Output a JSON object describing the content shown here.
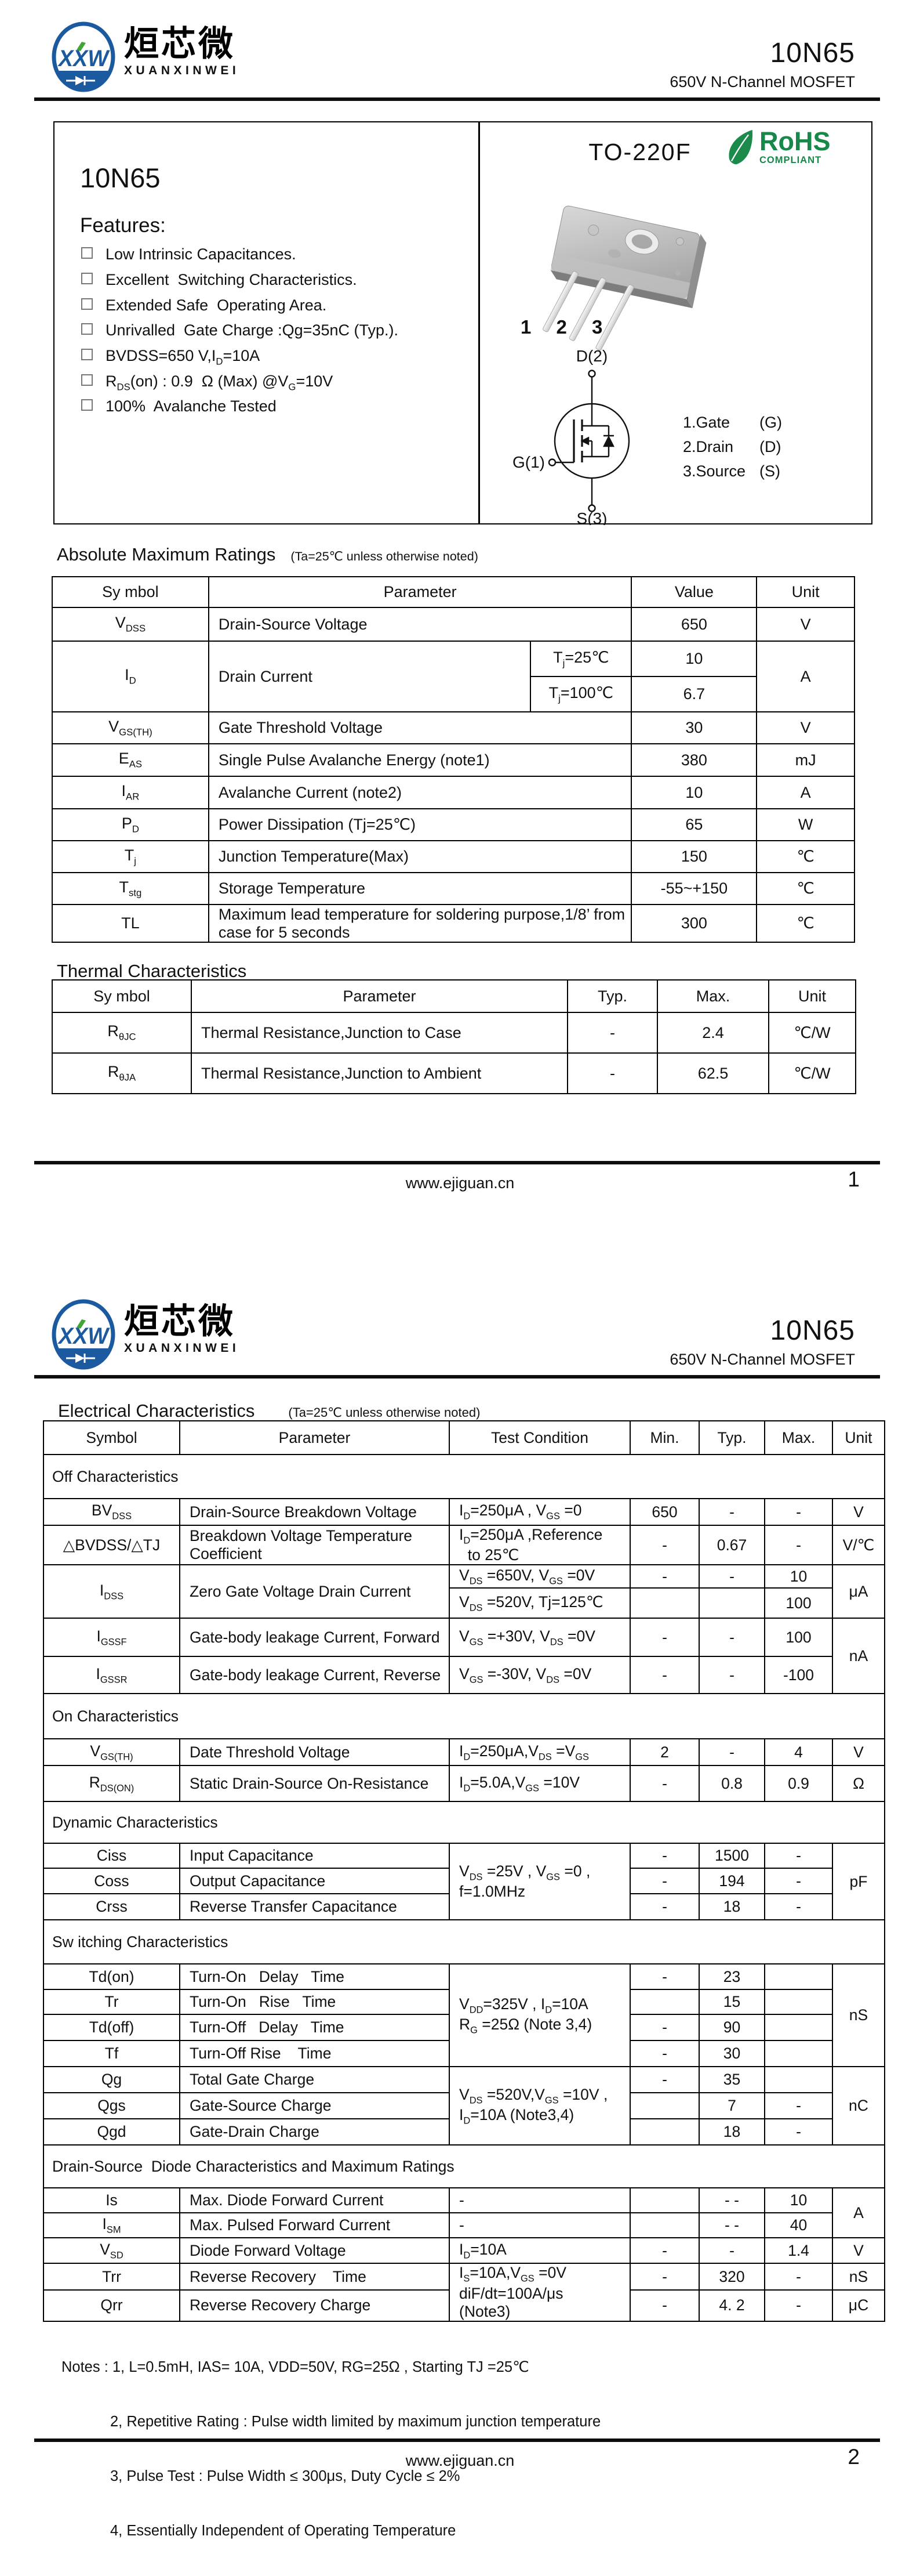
{
  "header": {
    "part": "10N65",
    "subtitle": "650V N-Channel MOSFET"
  },
  "brand": {
    "logo": "XXW",
    "cn": "烜芯微",
    "en": "XUANXINWEI"
  },
  "footer": {
    "url": "www.ejiguan.cn",
    "page1": "1",
    "page2": "2"
  },
  "page1": {
    "part_title": "10N65",
    "package_name": "TO-220F",
    "rohs": {
      "title": "RoHS",
      "subtitle": "COMPLIANT"
    },
    "pin_numbers": "1 2 3",
    "features_title": "Features:",
    "features": [
      "Low Intrinsic Capacitances.",
      "Excellent  Switching Characteristics.",
      "Extended Safe  Operating Area.",
      "Unrivalled  Gate Charge :Qg=35nC (Typ.).",
      "BVDSS=650 V,I<sub>D</sub>=10A",
      "R<sub>DS</sub>(on) : 0.9  Ω (Max) @V<sub>G</sub>=10V",
      "100%  Avalanche Tested"
    ],
    "mosfet_labels": {
      "drain": "D(2)",
      "gate": "G(1)",
      "source": "S(3)"
    },
    "pin_legend": [
      {
        "name": "1.Gate",
        "sym": "(G)"
      },
      {
        "name": "2.Drain",
        "sym": "(D)"
      },
      {
        "name": "3.Source",
        "sym": "(S)"
      }
    ],
    "abs_max": {
      "title": "Absolute Maximum Ratings",
      "note": "(Ta=25℃ unless otherwise noted)",
      "headers": {
        "symbol": "Sy mbol",
        "parameter": "Parameter",
        "value": "Value",
        "unit": "Unit"
      },
      "rows": [
        {
          "symbol": "V<sub>DSS</sub>",
          "parameter": "Drain-Source Voltage",
          "value": "650",
          "unit": "V"
        },
        {
          "symbol": "I<sub>D</sub>",
          "parameter": "Drain Current",
          "cond1": "T<sub>j</sub>=25℃",
          "value1": "10",
          "cond2": "T<sub>j</sub>=100℃",
          "value2": "6.7",
          "unit": "A"
        },
        {
          "symbol": "V<sub>GS(TH)</sub>",
          "parameter": "Gate Threshold Voltage",
          "value": "30",
          "unit": "V"
        },
        {
          "symbol": "E<sub>AS</sub>",
          "parameter": "Single Pulse Avalanche Energy (note1)",
          "value": "380",
          "unit": "mJ"
        },
        {
          "symbol": "I<sub>AR</sub>",
          "parameter": "Avalanche Current (note2)",
          "value": "10",
          "unit": "A"
        },
        {
          "symbol": "P<sub>D</sub>",
          "parameter": "Power Dissipation (Tj=25℃)",
          "value": "65",
          "unit": "W"
        },
        {
          "symbol": "T<sub>j</sub>",
          "parameter": "Junction Temperature(Max)",
          "value": "150",
          "unit": "℃"
        },
        {
          "symbol": "T<sub>stg</sub>",
          "parameter": "Storage Temperature",
          "value": "-55~+150",
          "unit": "℃"
        },
        {
          "symbol": "TL",
          "parameter": "Maximum lead temperature for soldering purpose,1/8’ from case for 5 seconds",
          "value": "300",
          "unit": "℃"
        }
      ]
    },
    "thermal": {
      "title": "Thermal Characteristics",
      "headers": {
        "symbol": "Sy mbol",
        "parameter": "Parameter",
        "typ": "Typ.",
        "max": "Max.",
        "unit": "Unit"
      },
      "rows": [
        {
          "symbol": "R<sub>θJC</sub>",
          "parameter": "Thermal Resistance,Junction to Case",
          "typ": "-",
          "max": "2.4",
          "unit": "℃/W"
        },
        {
          "symbol": "R<sub>θJA</sub>",
          "parameter": "Thermal Resistance,Junction to Ambient",
          "typ": "-",
          "max": "62.5",
          "unit": "℃/W"
        }
      ]
    }
  },
  "page2": {
    "section_title": "Electrical Characteristics",
    "section_note": "(Ta=25℃ unless otherwise noted)",
    "headers": {
      "symbol": "Symbol",
      "parameter": "Parameter",
      "cond": "Test Condition",
      "min": "Min.",
      "typ": "Typ.",
      "max": "Max.",
      "unit": "Unit"
    },
    "sections": {
      "off": "Off Characteristics",
      "on": "On Characteristics",
      "dynamic": "Dynamic Characteristics",
      "switching": "Sw itching Characteristics",
      "diode": "Drain-Source  Diode Characteristics and Maximum Ratings"
    },
    "rows": {
      "bvdss": {
        "symbol": "BV<sub>DSS</sub>",
        "parameter": "Drain-Source Breakdown Voltage",
        "cond": "I<sub>D</sub>=250μA , V<sub>GS</sub> =0",
        "min": "650",
        "typ": "-",
        "max": "-",
        "unit": "V"
      },
      "dbvdss": {
        "symbol": "△BVDSS/△TJ",
        "parameter": "Breakdown Voltage Temperature Coefficient",
        "cond": "I<sub>D</sub>=250μA ,Reference<br>  to 25℃",
        "min": "-",
        "typ": "0.67",
        "max": "-",
        "unit": "V/℃"
      },
      "idss": {
        "symbol": "I<sub>DSS</sub>",
        "parameter": "Zero Gate Voltage Drain Current",
        "cond1": "V<sub>DS</sub> =650V, V<sub>GS</sub> =0V",
        "min1": "-",
        "typ1": "-",
        "max1": "10",
        "cond2": "V<sub>DS</sub> =520V, Tj=125℃",
        "min2": "",
        "typ2": "",
        "max2": "100",
        "unit": "μA"
      },
      "igssf": {
        "symbol": "I<sub>GSSF</sub>",
        "parameter": "Gate-body leakage Current, Forward",
        "cond": "V<sub>GS</sub> =+30V, V<sub>DS</sub> =0V",
        "min": "-",
        "typ": "-",
        "max": "100",
        "unit": "nA"
      },
      "igssr": {
        "symbol": "I<sub>GSSR</sub>",
        "parameter": "Gate-body leakage Current, Reverse",
        "cond": "V<sub>GS</sub> =-30V, V<sub>DS</sub> =0V",
        "min": "-",
        "typ": "-",
        "max": "-100"
      },
      "vgsth": {
        "symbol": "V<sub>GS(TH)</sub>",
        "parameter": "Date Threshold Voltage",
        "cond": "I<sub>D</sub>=250μA,V<sub>DS</sub> =V<sub>GS</sub>",
        "min": "2",
        "typ": "-",
        "max": "4",
        "unit": "V"
      },
      "rdson": {
        "symbol": "R<sub>DS(ON)</sub>",
        "parameter": "Static Drain-Source On-Resistance",
        "cond": "I<sub>D</sub>=5.0A,V<sub>GS</sub> =10V",
        "min": "-",
        "typ": "0.8",
        "max": "0.9",
        "unit": "Ω"
      },
      "cap_cond": "V<sub>DS</sub> =25V , V<sub>GS</sub> =0 ,<br>f=1.0MHz",
      "cap_unit": "pF",
      "ciss": {
        "symbol": "Ciss",
        "parameter": "Input Capacitance",
        "min": "-",
        "typ": "1500",
        "max": "-"
      },
      "coss": {
        "symbol": "Coss",
        "parameter": "Output Capacitance",
        "min": "-",
        "typ": "194",
        "max": "-"
      },
      "crss": {
        "symbol": "Crss",
        "parameter": "Reverse Transfer Capacitance",
        "min": "-",
        "typ": "18",
        "max": "-"
      },
      "sw_cond": "V<sub>DD</sub>=325V , I<sub>D</sub>=10A<br>R<sub>G</sub> =25Ω (Note 3,4)",
      "sw_unit": "nS",
      "tdon": {
        "symbol": "Td(on)",
        "parameter": "Turn-On   Delay   Time",
        "min": "-",
        "typ": "23",
        "max": ""
      },
      "tr": {
        "symbol": "Tr",
        "parameter": "Turn-On   Rise   Time",
        "min": "",
        "typ": "15",
        "max": ""
      },
      "tdoff": {
        "symbol": "Td(off)",
        "parameter": "Turn-Off   Delay   Time",
        "min": "-",
        "typ": "90",
        "max": ""
      },
      "tf": {
        "symbol": "Tf",
        "parameter": "Turn-Off Rise    Time",
        "min": "-",
        "typ": "30",
        "max": ""
      },
      "q_cond": "V<sub>DS</sub> =520V,V<sub>GS</sub> =10V ,<br>I<sub>D</sub>=10A (Note3,4)",
      "q_unit": "nC",
      "qg": {
        "symbol": "Qg",
        "parameter": "Total Gate Charge",
        "min": "-",
        "typ": "35",
        "max": ""
      },
      "qgs": {
        "symbol": "Qgs",
        "parameter": "Gate-Source Charge",
        "min": "",
        "typ": "7",
        "max": "-"
      },
      "qgd": {
        "symbol": "Qgd",
        "parameter": "Gate-Drain Charge",
        "min": "",
        "typ": "18",
        "max": "-"
      },
      "i_unit": "A",
      "is": {
        "symbol": "Is",
        "parameter": "Max. Diode Forward Current",
        "cond": "-",
        "min": "",
        "typ": "- -",
        "max": "10"
      },
      "ism": {
        "symbol": "I<sub>SM</sub>",
        "parameter": "Max. Pulsed Forward Current",
        "cond": "-",
        "min": "",
        "typ": "- -",
        "max": "40"
      },
      "vsd": {
        "symbol": "V<sub>SD</sub>",
        "parameter": "Diode Forward Voltage",
        "cond": "I<sub>D</sub>=10A",
        "min": "-",
        "typ": "-",
        "max": "1.4",
        "unit": "V"
      },
      "rr_cond": "I<sub>S</sub>=10A,V<sub>GS</sub> =0V<br>diF/dt=100A/μs<br>(Note3)",
      "trr": {
        "symbol": "Trr",
        "parameter": "Reverse Recovery    Time",
        "min": "-",
        "typ": "320",
        "max": "-",
        "unit": "nS"
      },
      "qrr": {
        "symbol": "Qrr",
        "parameter": "Reverse Recovery Charge",
        "min": "-",
        "typ": "4. 2",
        "max": "-",
        "unit": "μC"
      }
    },
    "notes": [
      "Notes : 1, L=0.5mH, IAS= 10A, VDD=50V, RG=25Ω , Starting TJ =25℃",
      "2, Repetitive Rating : Pulse width limited by maximum junction temperature",
      "3, Pulse Test : Pulse Width ≤ 300μs, Duty Cycle ≤ 2%",
      "4, Essentially Independent of Operating Temperature"
    ]
  }
}
